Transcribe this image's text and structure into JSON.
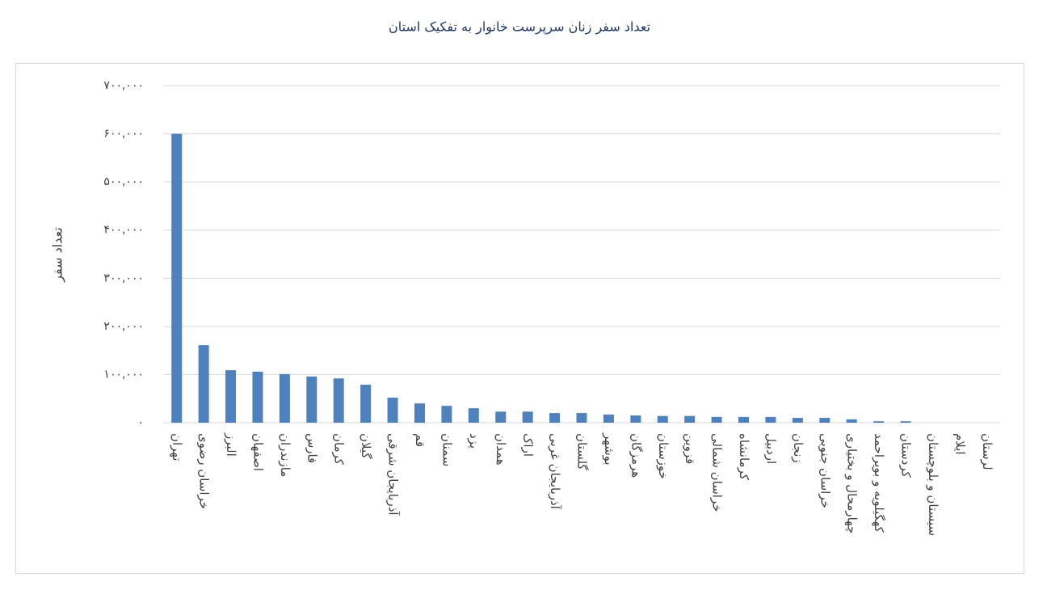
{
  "chart_data": {
    "type": "bar",
    "title": "تعداد سفر زنان سرپرست خانوار به تفکیک استان",
    "y_label": "تعداد سفر",
    "categories": [
      "تهران",
      "خراسان رضوی",
      "البرز",
      "اصفهان",
      "مازندران",
      "فارس",
      "کرمان",
      "گیلان",
      "آذربایجان شرقی",
      "قم",
      "سمنان",
      "یزد",
      "همدان",
      "اراک",
      "آذربایجان غربی",
      "گلستان",
      "بوشهر",
      "هرمزگان",
      "خوزستان",
      "قزوین",
      "خراسان شمالی",
      "کرمانشاه",
      "اردبیل",
      "زنجان",
      "خراسان جنوبی",
      "چهارمحال و بختیاری",
      "کهگیلویه و بویراحمد",
      "کردستان",
      "سیستان و بلوچستان",
      "ایلام",
      "لرستان"
    ],
    "values": [
      600000,
      161000,
      109000,
      106000,
      101000,
      96000,
      92000,
      79000,
      52000,
      40000,
      35000,
      30000,
      23000,
      23000,
      20000,
      20000,
      17000,
      15000,
      14000,
      14000,
      12000,
      12000,
      12000,
      10000,
      10000,
      7000,
      3000,
      3000,
      0,
      0,
      0
    ],
    "color": "#4f81bd",
    "ylim": [
      0,
      700000
    ],
    "yticks": [
      {
        "value": 0,
        "label": "۰"
      },
      {
        "value": 100000,
        "label": "۱۰۰,۰۰۰"
      },
      {
        "value": 200000,
        "label": "۲۰۰,۰۰۰"
      },
      {
        "value": 300000,
        "label": "۳۰۰,۰۰۰"
      },
      {
        "value": 400000,
        "label": "۴۰۰,۰۰۰"
      },
      {
        "value": 500000,
        "label": "۵۰۰,۰۰۰"
      },
      {
        "value": 600000,
        "label": "۶۰۰,۰۰۰"
      },
      {
        "value": 700000,
        "label": "۷۰۰,۰۰۰"
      }
    ],
    "grid": true
  }
}
